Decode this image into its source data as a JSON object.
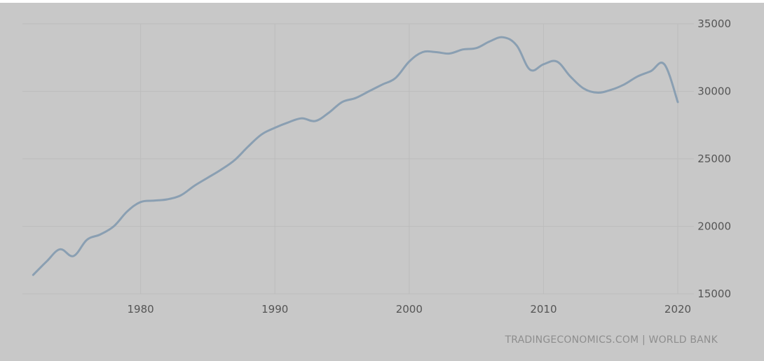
{
  "chart_data": {
    "type": "line",
    "title": "",
    "xlabel": "",
    "ylabel": "",
    "xlim": [
      1971.2,
      2021.2
    ],
    "ylim": [
      15000,
      35000
    ],
    "x_ticks": [
      "1980",
      "1990",
      "2000",
      "2010",
      "2020"
    ],
    "y_ticks": [
      "35000",
      "30000",
      "25000",
      "20000",
      "15000"
    ],
    "grid": true,
    "legend": "none",
    "y_axis_position": "right",
    "series": [
      {
        "color": "#8a9fb2",
        "x": [
          1972,
          1973,
          1974,
          1975,
          1976,
          1977,
          1978,
          1979,
          1980,
          1981,
          1982,
          1983,
          1984,
          1985,
          1986,
          1987,
          1988,
          1989,
          1990,
          1991,
          1992,
          1993,
          1994,
          1995,
          1996,
          1997,
          1998,
          1999,
          2000,
          2001,
          2002,
          2003,
          2004,
          2005,
          2006,
          2007,
          2008,
          2009,
          2010,
          2011,
          2012,
          2013,
          2014,
          2015,
          2016,
          2017,
          2018,
          2019,
          2020
        ],
        "values": [
          16400,
          17400,
          18300,
          17800,
          19000,
          19400,
          20000,
          21100,
          21800,
          21900,
          22000,
          22300,
          23000,
          23600,
          24200,
          24900,
          25900,
          26800,
          27300,
          27700,
          28000,
          27800,
          28400,
          29200,
          29500,
          30000,
          30500,
          31000,
          32200,
          32900,
          32900,
          32800,
          33100,
          33200,
          33700,
          34000,
          33400,
          31600,
          32000,
          32200,
          31100,
          30200,
          29900,
          30100,
          30500,
          31100,
          31500,
          32000,
          29200
        ]
      }
    ]
  },
  "source": "TRADINGECONOMICS.COM | WORLD BANK",
  "colors": {
    "background": "#c8c8c8",
    "grid": "#bdbdbd",
    "line": "#8a9fb2"
  }
}
